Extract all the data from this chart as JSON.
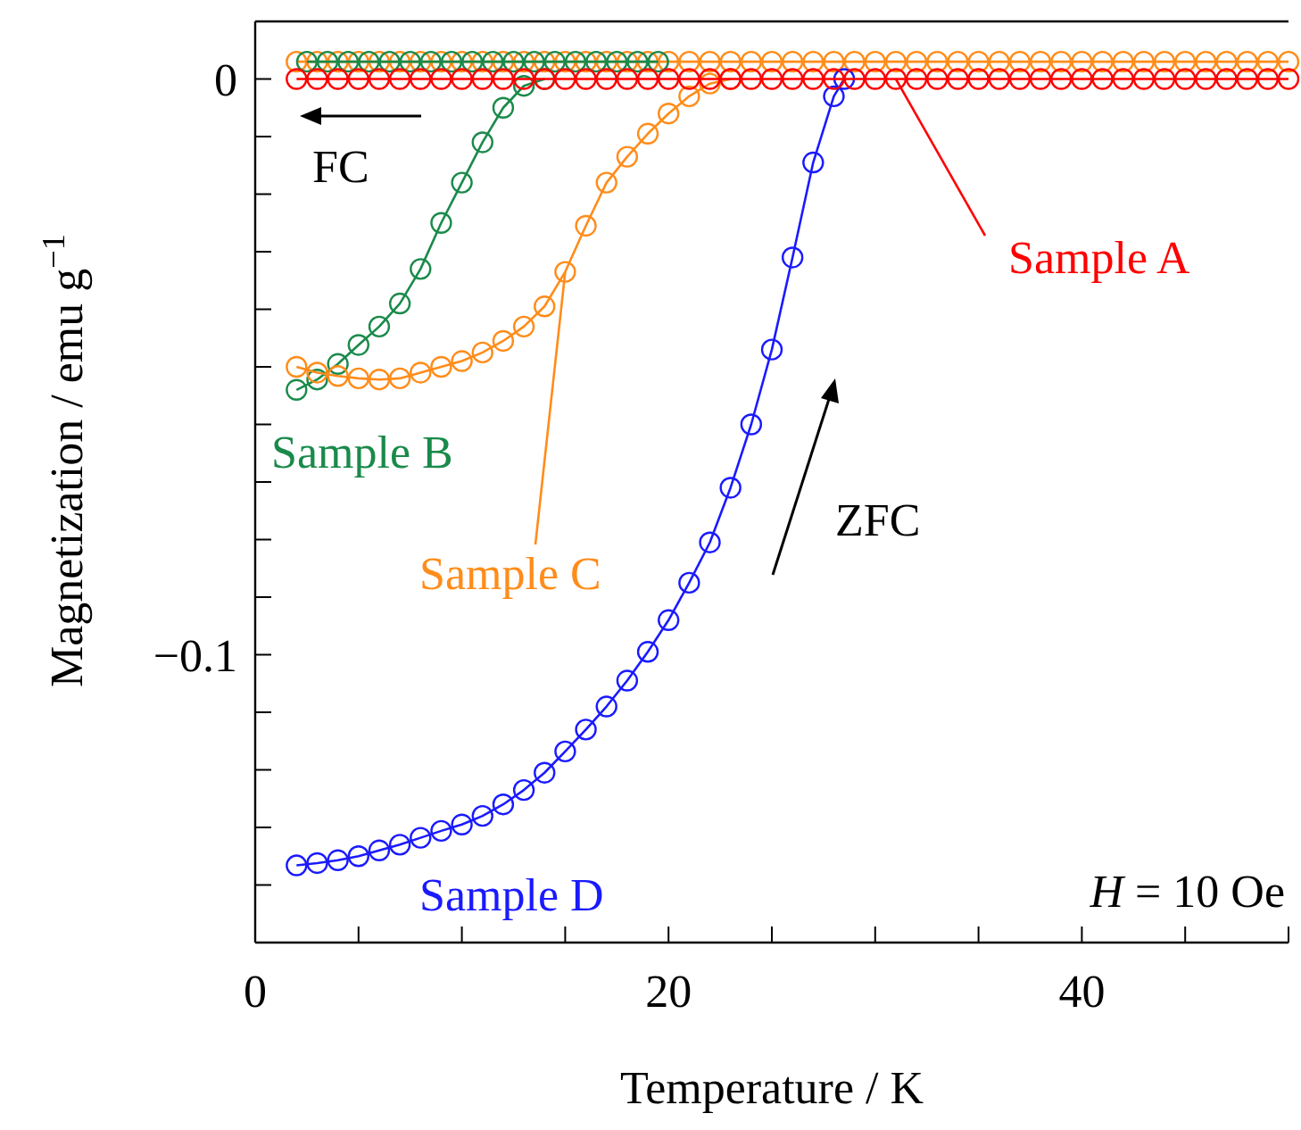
{
  "chart_data": {
    "type": "line",
    "xlabel": "Temperature / K",
    "ylabel": "Magnetization / emu g$^{−1}$",
    "xlim": [
      0,
      50
    ],
    "ylim": [
      -0.15,
      0.01
    ],
    "xticks": [
      0,
      {
        "value": 5,
        "label": null
      },
      {
        "value": 10,
        "label": null
      },
      {
        "value": 15,
        "label": null
      },
      20,
      {
        "value": 25,
        "label": null
      },
      {
        "value": 30,
        "label": null
      },
      {
        "value": 35,
        "label": null
      },
      40,
      {
        "value": 45,
        "label": null
      },
      {
        "value": 50,
        "label": null
      }
    ],
    "yticks": [
      0,
      {
        "value": -0.01,
        "label": null
      },
      {
        "value": -0.02,
        "label": null
      },
      {
        "value": -0.03,
        "label": null
      },
      {
        "value": -0.04,
        "label": null
      },
      {
        "value": -0.05,
        "label": null
      },
      {
        "value": -0.06,
        "label": null
      },
      {
        "value": -0.07,
        "label": null
      },
      {
        "value": -0.08,
        "label": null
      },
      {
        "value": -0.09,
        "label": null
      },
      {
        "value": -0.1,
        "label": "−0.1"
      },
      {
        "value": -0.11,
        "label": null
      },
      {
        "value": -0.12,
        "label": null
      },
      {
        "value": -0.13,
        "label": null
      },
      {
        "value": -0.14,
        "label": null
      }
    ],
    "marker": "circle",
    "line_style": "solid",
    "annotations": [
      "FC",
      "ZFC",
      "H = 10 Oe"
    ],
    "series": [
      {
        "color": "#ff8c1a",
        "x": [
          2,
          3,
          4,
          5,
          6,
          7,
          8,
          9,
          10,
          11,
          12,
          13,
          14,
          15,
          16,
          17,
          18,
          19,
          20,
          21,
          22,
          23,
          24,
          25,
          26,
          27,
          28,
          29,
          30,
          31,
          32,
          33,
          34,
          35,
          36,
          37,
          38,
          39,
          40,
          41,
          42,
          43,
          44,
          45,
          46,
          47,
          48,
          49,
          50
        ],
        "values": [
          0.003,
          0.003,
          0.003,
          0.003,
          0.003,
          0.003,
          0.003,
          0.003,
          0.003,
          0.003,
          0.003,
          0.003,
          0.003,
          0.003,
          0.003,
          0.003,
          0.003,
          0.003,
          0.003,
          0.003,
          0.003,
          0.003,
          0.003,
          0.003,
          0.003,
          0.003,
          0.003,
          0.003,
          0.003,
          0.003,
          0.003,
          0.003,
          0.003,
          0.003,
          0.003,
          0.003,
          0.003,
          0.003,
          0.003,
          0.003,
          0.003,
          0.003,
          0.003,
          0.003,
          0.003,
          0.003,
          0.003,
          0.003,
          0.003
        ]
      },
      {
        "color": "#1a8a4a",
        "x": [
          2.5,
          3.5,
          4.5,
          5.5,
          6.5,
          7.5,
          8.5,
          9.5,
          10.5,
          11.5,
          12.5,
          13.5,
          14.5,
          15.5,
          16.5,
          17.5,
          18.5,
          19.5
        ],
        "values": [
          0.003,
          0.003,
          0.003,
          0.003,
          0.003,
          0.003,
          0.003,
          0.003,
          0.003,
          0.003,
          0.003,
          0.003,
          0.003,
          0.003,
          0.003,
          0.003,
          0.003,
          0.003
        ]
      },
      {
        "name": "Sample B",
        "color": "#1a8a4a",
        "x": [
          2,
          3,
          4,
          5,
          6,
          7,
          8,
          9,
          10,
          11,
          12,
          13,
          14
        ],
        "values": [
          -0.054,
          -0.0522,
          -0.0495,
          -0.0462,
          -0.043,
          -0.039,
          -0.033,
          -0.025,
          -0.018,
          -0.011,
          -0.005,
          -0.0012,
          0
        ]
      },
      {
        "name": "Sample C",
        "color": "#ff8c1a",
        "x": [
          2,
          3,
          4,
          5,
          6,
          7,
          8,
          9,
          10,
          11,
          12,
          13,
          14,
          15,
          16,
          17,
          18,
          19,
          20,
          21,
          22,
          23
        ],
        "values": [
          -0.05,
          -0.051,
          -0.0516,
          -0.052,
          -0.0522,
          -0.052,
          -0.051,
          -0.05,
          -0.049,
          -0.0475,
          -0.0455,
          -0.043,
          -0.0395,
          -0.0335,
          -0.0255,
          -0.018,
          -0.0135,
          -0.0095,
          -0.006,
          -0.003,
          -0.0008,
          0
        ]
      },
      {
        "name": "Sample D",
        "color": "#1a1aff",
        "x": [
          2,
          3,
          4,
          5,
          6,
          7,
          8,
          9,
          10,
          11,
          12,
          13,
          14,
          15,
          16,
          17,
          18,
          19,
          20,
          21,
          22,
          23,
          24,
          25,
          26,
          27,
          28,
          28.5
        ],
        "values": [
          -0.1366,
          -0.1362,
          -0.1357,
          -0.135,
          -0.134,
          -0.133,
          -0.1318,
          -0.1306,
          -0.1295,
          -0.128,
          -0.126,
          -0.1235,
          -0.1205,
          -0.1168,
          -0.113,
          -0.109,
          -0.1045,
          -0.0995,
          -0.094,
          -0.0875,
          -0.0805,
          -0.071,
          -0.06,
          -0.047,
          -0.031,
          -0.0145,
          -0.003,
          0
        ]
      },
      {
        "name": "Sample A",
        "color": "#ff0000",
        "x": [
          2,
          3,
          4,
          5,
          6,
          7,
          8,
          9,
          10,
          11,
          12,
          13,
          14,
          15,
          16,
          17,
          18,
          19,
          20,
          21,
          22,
          23,
          24,
          25,
          26,
          27,
          28,
          29,
          30,
          31,
          32,
          33,
          34,
          35,
          36,
          37,
          38,
          39,
          40,
          41,
          42,
          43,
          44,
          45,
          46,
          47,
          48,
          49,
          50
        ],
        "values": [
          0,
          0,
          0,
          0,
          0,
          0,
          0,
          0,
          0,
          0,
          0,
          0,
          0,
          0,
          0,
          0,
          0,
          0,
          0,
          0,
          0,
          0,
          0,
          0,
          0,
          0,
          0,
          0,
          0,
          0,
          0,
          0,
          0,
          0,
          0,
          0,
          0,
          0,
          0,
          0,
          0,
          0,
          0,
          0,
          0,
          0,
          0,
          0,
          0
        ]
      }
    ]
  }
}
